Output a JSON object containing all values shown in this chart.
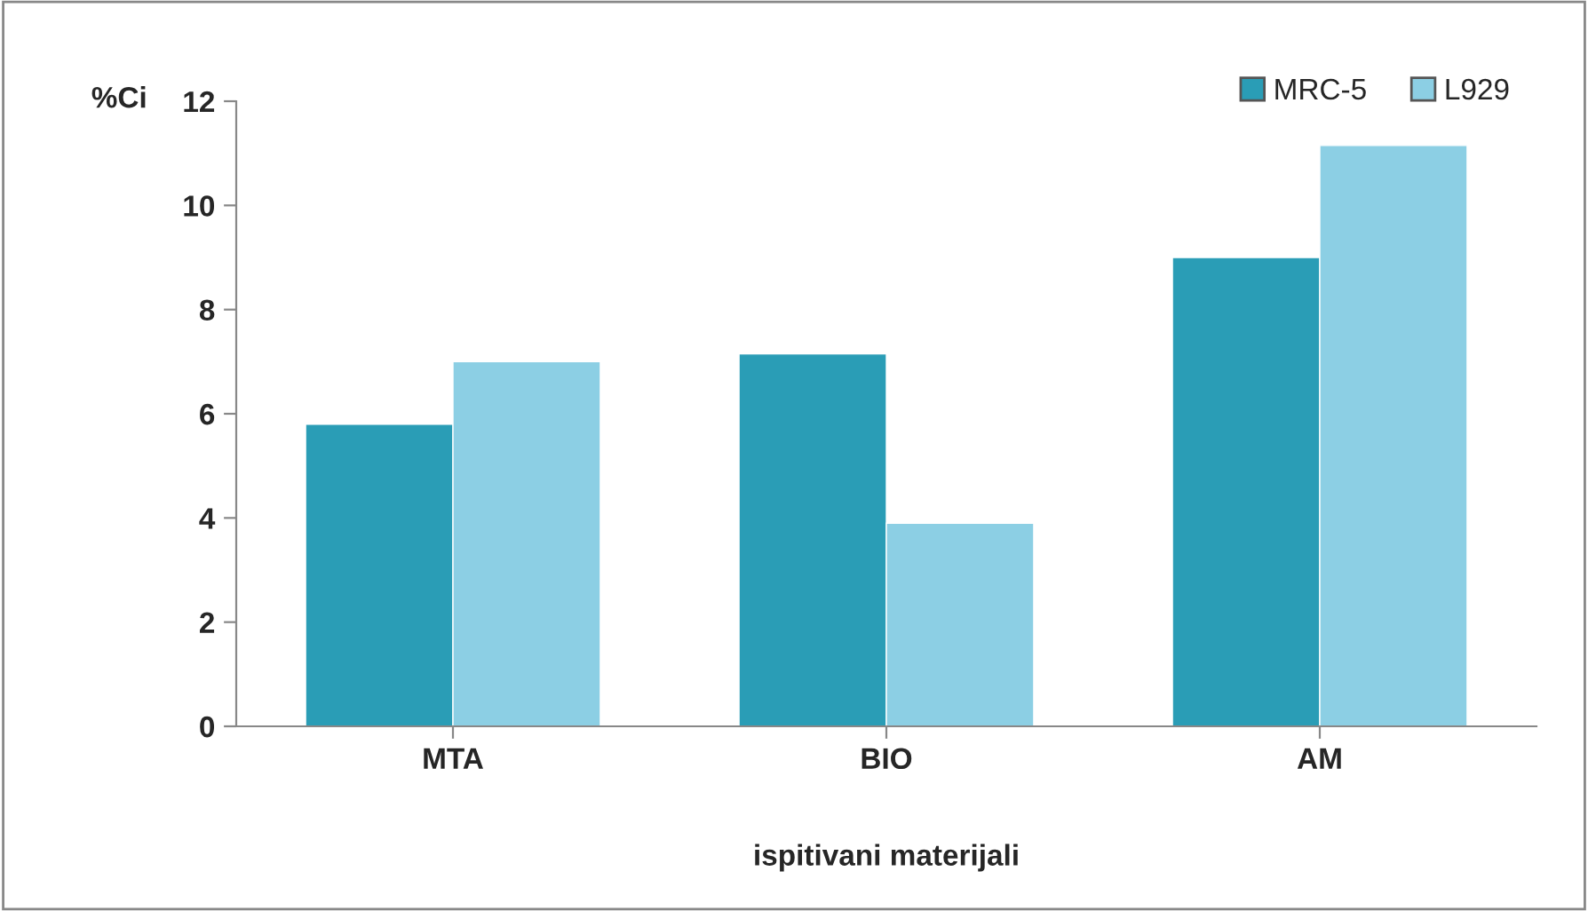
{
  "chart_data": {
    "type": "bar",
    "xlabel": "ispitivani materijali",
    "ylabel": "%Ci",
    "categories": [
      "MTA",
      "BIO",
      "AM"
    ],
    "series": [
      {
        "name": "MRC-5",
        "color": "#2a9db6",
        "values": [
          5.8,
          7.15,
          9.0
        ]
      },
      {
        "name": "L929",
        "color": "#8ccfe4",
        "values": [
          7.0,
          3.9,
          11.15
        ]
      }
    ],
    "ylim": [
      0,
      12
    ],
    "yticks": [
      0,
      2,
      4,
      6,
      8,
      10,
      12
    ],
    "grid": false,
    "legend": "top right"
  }
}
